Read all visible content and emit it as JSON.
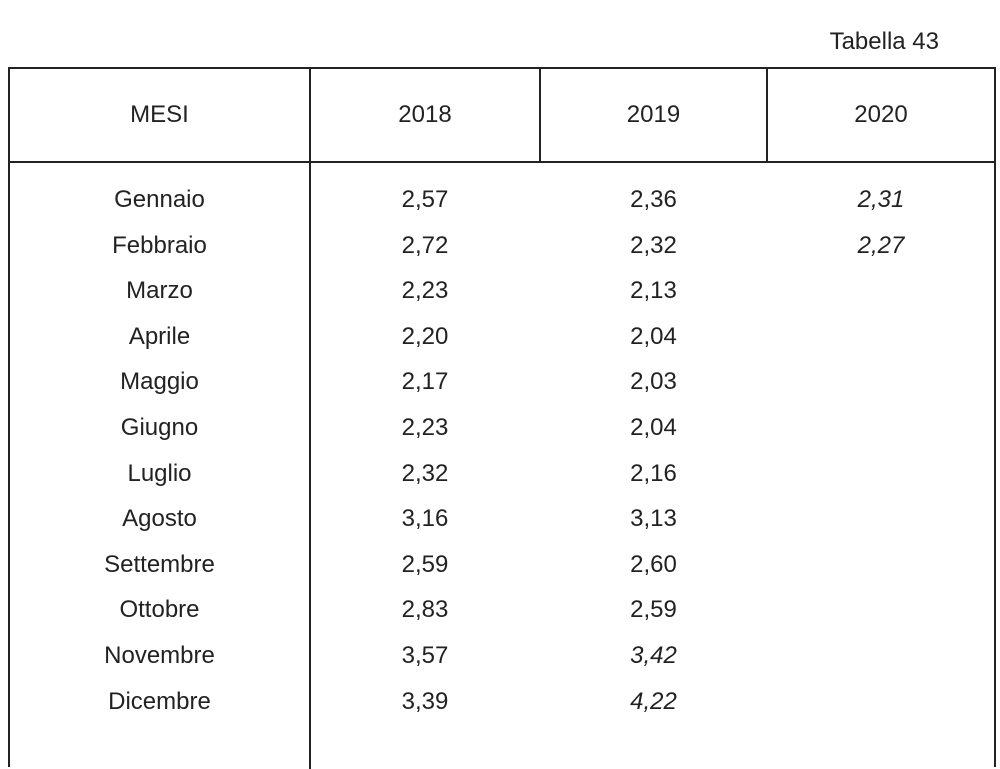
{
  "caption": "Tabella 43",
  "table": {
    "headers": [
      "MESI",
      "2018",
      "2019",
      "2020"
    ],
    "rows": [
      {
        "mese": "Gennaio",
        "v2018": "2,57",
        "v2019": "2,36",
        "v2020": "2,31"
      },
      {
        "mese": "Febbraio",
        "v2018": "2,72",
        "v2019": "2,32",
        "v2020": "2,27"
      },
      {
        "mese": "Marzo",
        "v2018": "2,23",
        "v2019": "2,13",
        "v2020": ""
      },
      {
        "mese": "Aprile",
        "v2018": "2,20",
        "v2019": "2,04",
        "v2020": ""
      },
      {
        "mese": "Maggio",
        "v2018": "2,17",
        "v2019": "2,03",
        "v2020": ""
      },
      {
        "mese": "Giugno",
        "v2018": "2,23",
        "v2019": "2,04",
        "v2020": ""
      },
      {
        "mese": "Luglio",
        "v2018": "2,32",
        "v2019": "2,16",
        "v2020": ""
      },
      {
        "mese": "Agosto",
        "v2018": "3,16",
        "v2019": "3,13",
        "v2020": ""
      },
      {
        "mese": "Settembre",
        "v2018": "2,59",
        "v2019": "2,60",
        "v2020": ""
      },
      {
        "mese": "Ottobre",
        "v2018": "2,83",
        "v2019": "2,59",
        "v2020": ""
      },
      {
        "mese": "Novembre",
        "v2018": "3,57",
        "v2019": "3,42",
        "v2020": ""
      },
      {
        "mese": "Dicembre",
        "v2018": "3,39",
        "v2019": "4,22",
        "v2020": ""
      }
    ],
    "italic_cells": [
      "0.v2020",
      "1.v2020",
      "10.v2019",
      "11.v2019"
    ]
  }
}
